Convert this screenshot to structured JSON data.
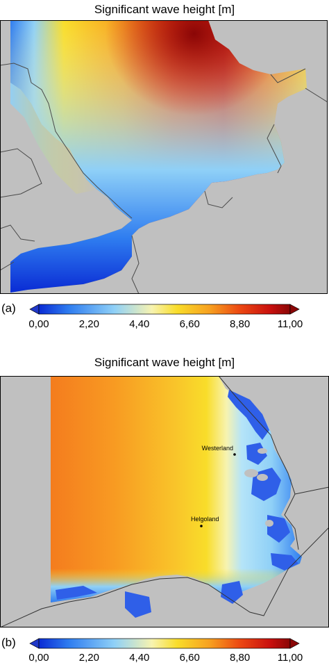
{
  "panel_a": {
    "title": "Significant wave height [m]",
    "label": "(a)",
    "scale": {
      "min": 0,
      "max": 11,
      "ticks": [
        "0,00",
        "2,20",
        "4,40",
        "6,60",
        "8,80",
        "11,00"
      ]
    }
  },
  "panel_b": {
    "title": "Significant wave height [m]",
    "label": "(b)",
    "scale": {
      "min": 0,
      "max": 11,
      "ticks": [
        "0,00",
        "2,20",
        "4,40",
        "6,60",
        "8,80",
        "11,00"
      ]
    },
    "places": [
      {
        "name": "Westerland"
      },
      {
        "name": "Helgoland"
      }
    ]
  },
  "colors": {
    "land": "#c0c0c0",
    "coastline": "#4a4a4a",
    "colormap": [
      "#0a2bd4",
      "#2f7df0",
      "#8fd0f7",
      "#f7f3b0",
      "#f9dd2a",
      "#f7a020",
      "#ec4812",
      "#c9100e",
      "#8a0606"
    ]
  }
}
